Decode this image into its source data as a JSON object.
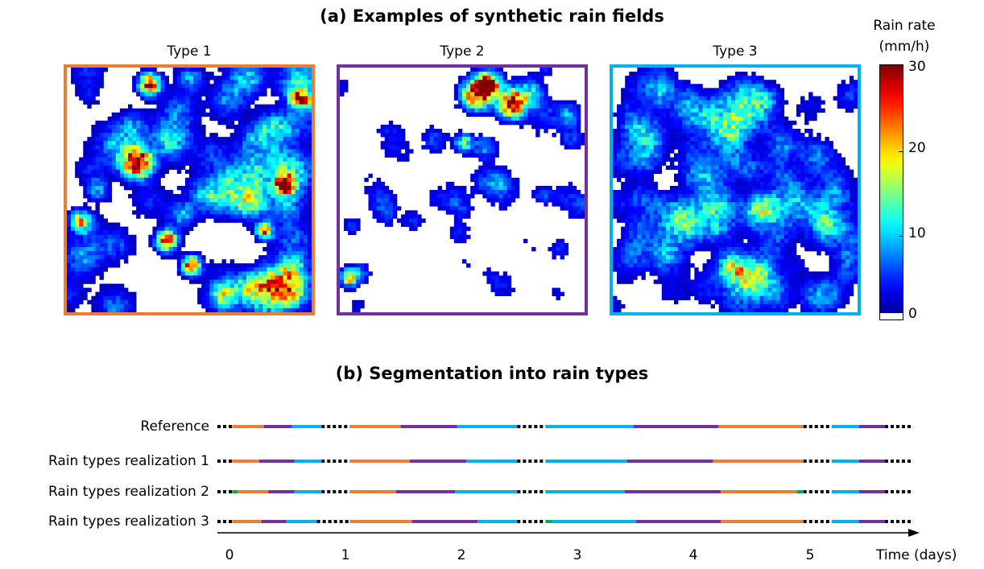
{
  "title_a": "(a) Examples of synthetic rain fields",
  "title_b": "(b) Segmentation into rain types",
  "panels": [
    {
      "label": "Type 1",
      "border_color": "#ED7D31"
    },
    {
      "label": "Type 2",
      "border_color": "#7030A0"
    },
    {
      "label": "Type 3",
      "border_color": "#00B0F0"
    }
  ],
  "colorbar": {
    "title_line1": "Rain rate",
    "title_line2": "(mm/h)",
    "ticks": [
      "30",
      "20",
      "10",
      "0"
    ],
    "colormap": "jet"
  },
  "timeline": {
    "rows": [
      {
        "label": "Reference",
        "segments": [
          [
            0.0,
            0.13,
            "dash"
          ],
          [
            0.13,
            0.41,
            "orange"
          ],
          [
            0.41,
            0.66,
            "purple"
          ],
          [
            0.66,
            0.92,
            "cyan"
          ],
          [
            0.92,
            1.17,
            "dash"
          ],
          [
            1.17,
            1.62,
            "orange"
          ],
          [
            1.62,
            2.12,
            "purple"
          ],
          [
            2.12,
            2.65,
            "cyan"
          ],
          [
            2.65,
            2.9,
            "dash"
          ],
          [
            2.9,
            3.68,
            "cyan"
          ],
          [
            3.68,
            4.43,
            "purple"
          ],
          [
            4.43,
            5.18,
            "orange"
          ],
          [
            5.18,
            5.43,
            "dash"
          ],
          [
            5.43,
            5.67,
            "cyan"
          ],
          [
            5.67,
            5.9,
            "purple"
          ],
          [
            5.9,
            6.15,
            "dash"
          ]
        ]
      },
      {
        "label": "Rain types realization 1",
        "segments": [
          [
            0.0,
            0.13,
            "dash"
          ],
          [
            0.13,
            0.37,
            "orange"
          ],
          [
            0.37,
            0.68,
            "purple"
          ],
          [
            0.68,
            0.92,
            "cyan"
          ],
          [
            0.92,
            1.17,
            "dash"
          ],
          [
            1.17,
            1.7,
            "orange"
          ],
          [
            1.7,
            2.2,
            "purple"
          ],
          [
            2.2,
            2.65,
            "cyan"
          ],
          [
            2.65,
            2.9,
            "dash"
          ],
          [
            2.9,
            3.62,
            "cyan"
          ],
          [
            3.62,
            4.38,
            "purple"
          ],
          [
            4.38,
            5.18,
            "orange"
          ],
          [
            5.18,
            5.43,
            "dash"
          ],
          [
            5.43,
            5.67,
            "cyan"
          ],
          [
            5.67,
            5.9,
            "purple"
          ],
          [
            5.9,
            6.15,
            "dash"
          ]
        ]
      },
      {
        "label": "Rain types realization 2",
        "segments": [
          [
            0.0,
            0.13,
            "dash"
          ],
          [
            0.13,
            0.18,
            "green"
          ],
          [
            0.18,
            0.45,
            "orange"
          ],
          [
            0.45,
            0.68,
            "purple"
          ],
          [
            0.68,
            0.92,
            "cyan"
          ],
          [
            0.92,
            1.17,
            "dash"
          ],
          [
            1.17,
            1.58,
            "orange"
          ],
          [
            1.58,
            2.1,
            "purple"
          ],
          [
            2.1,
            2.65,
            "cyan"
          ],
          [
            2.65,
            2.9,
            "dash"
          ],
          [
            2.9,
            3.6,
            "cyan"
          ],
          [
            3.6,
            4.45,
            "purple"
          ],
          [
            4.45,
            5.12,
            "orange"
          ],
          [
            5.12,
            5.18,
            "green"
          ],
          [
            5.18,
            5.43,
            "dash"
          ],
          [
            5.43,
            5.67,
            "cyan"
          ],
          [
            5.67,
            5.9,
            "purple"
          ],
          [
            5.9,
            6.15,
            "dash"
          ]
        ]
      },
      {
        "label": "Rain types realization 3",
        "segments": [
          [
            0.0,
            0.13,
            "dash"
          ],
          [
            0.13,
            0.39,
            "orange"
          ],
          [
            0.39,
            0.61,
            "purple"
          ],
          [
            0.61,
            0.88,
            "cyan"
          ],
          [
            0.88,
            1.17,
            "dash"
          ],
          [
            1.17,
            1.72,
            "orange"
          ],
          [
            1.72,
            2.3,
            "purple"
          ],
          [
            2.3,
            2.65,
            "cyan"
          ],
          [
            2.65,
            2.9,
            "dash"
          ],
          [
            2.9,
            2.96,
            "green"
          ],
          [
            2.96,
            3.7,
            "cyan"
          ],
          [
            3.7,
            4.45,
            "purple"
          ],
          [
            4.45,
            5.18,
            "orange"
          ],
          [
            5.18,
            5.43,
            "dash"
          ],
          [
            5.43,
            5.67,
            "cyan"
          ],
          [
            5.67,
            5.9,
            "purple"
          ],
          [
            5.9,
            6.15,
            "dash"
          ]
        ]
      }
    ],
    "x_ticks": [
      "0",
      "1",
      "2",
      "3",
      "4",
      "5"
    ],
    "x_label": "Time (days)",
    "colors": {
      "orange": "#ED7D31",
      "purple": "#7030A0",
      "cyan": "#00B0F0",
      "green": "#00B050",
      "dash": "#000000"
    }
  }
}
